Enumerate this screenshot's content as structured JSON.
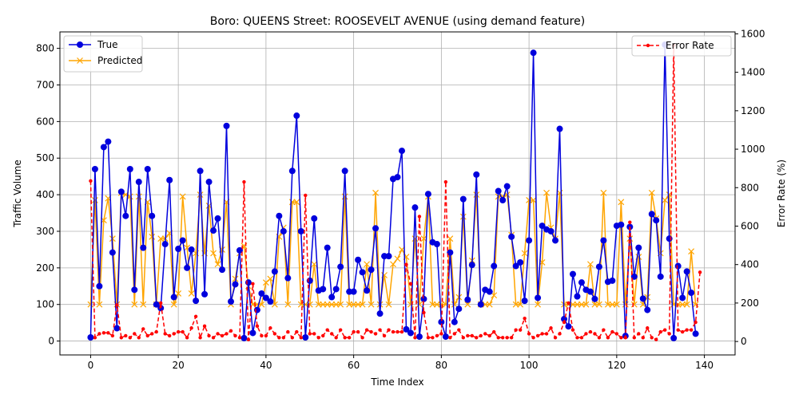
{
  "chart_data": {
    "type": "line",
    "title": "Boro: QUEENS Street: ROOSEVELT AVENUE (using demand feature)",
    "xlabel": "Time Index",
    "ylabel_left": "Traffic Volume",
    "ylabel_right": "Error Rate (%)",
    "xlim": [
      -7,
      147
    ],
    "ylim_left": [
      -38,
      845
    ],
    "ylim_right": [
      -70,
      1610
    ],
    "x_ticks": [
      0,
      20,
      40,
      60,
      80,
      100,
      120,
      140
    ],
    "y_left_ticks": [
      0,
      100,
      200,
      300,
      400,
      500,
      600,
      700,
      800
    ],
    "y_right_ticks": [
      0,
      200,
      400,
      600,
      800,
      1000,
      1200,
      1400,
      1600
    ],
    "grid": true,
    "legend_left": "top-left",
    "legend_right": "top-right",
    "colors": {
      "true": "#0000dd",
      "predicted": "#ffa500",
      "error": "#ff0000",
      "grid": "#b0b0b0"
    },
    "series": [
      {
        "name": "True",
        "axis": "left",
        "values": [
          10,
          470,
          150,
          530,
          545,
          242,
          35,
          408,
          342,
          470,
          140,
          435,
          255,
          470,
          342,
          100,
          90,
          265,
          440,
          120,
          252,
          275,
          200,
          250,
          110,
          465,
          128,
          435,
          302,
          335,
          195,
          588,
          108,
          155,
          248,
          8,
          160,
          22,
          85,
          130,
          118,
          108,
          190,
          342,
          300,
          172,
          465,
          616,
          300,
          10,
          165,
          335,
          138,
          142,
          255,
          120,
          142,
          203,
          465,
          135,
          135,
          222,
          188,
          138,
          195,
          308,
          75,
          232,
          232,
          443,
          448,
          520,
          32,
          22,
          365,
          12,
          115,
          402,
          270,
          265,
          52,
          12,
          242,
          52,
          88,
          388,
          113,
          208,
          455,
          100,
          140,
          135,
          205,
          410,
          385,
          423,
          285,
          205,
          215,
          110,
          275,
          788,
          118,
          315,
          305,
          300,
          275,
          580,
          60,
          40,
          183,
          122,
          160,
          140,
          135,
          115,
          203,
          275,
          162,
          165,
          315,
          318,
          14,
          312,
          176,
          255,
          116,
          85,
          347,
          330,
          176,
          810,
          280,
          8,
          205,
          118,
          190,
          132,
          20
        ]
      },
      {
        "name": "Predicted",
        "axis": "left",
        "values": [
          100,
          385,
          100,
          330,
          390,
          280,
          100,
          405,
          400,
          395,
          100,
          395,
          100,
          380,
          285,
          100,
          280,
          280,
          295,
          100,
          130,
          395,
          255,
          130,
          240,
          400,
          240,
          370,
          240,
          210,
          250,
          380,
          100,
          170,
          240,
          260,
          150,
          100,
          100,
          100,
          160,
          170,
          100,
          285,
          310,
          100,
          380,
          380,
          100,
          100,
          100,
          210,
          100,
          100,
          100,
          100,
          100,
          100,
          395,
          100,
          100,
          100,
          100,
          210,
          100,
          405,
          100,
          180,
          100,
          210,
          225,
          250,
          230,
          100,
          280,
          100,
          280,
          395,
          100,
          100,
          100,
          100,
          280,
          100,
          120,
          340,
          100,
          220,
          400,
          100,
          100,
          100,
          125,
          395,
          395,
          400,
          290,
          100,
          100,
          240,
          385,
          385,
          100,
          215,
          405,
          310,
          280,
          405,
          100,
          100,
          100,
          100,
          100,
          100,
          210,
          100,
          100,
          405,
          100,
          100,
          100,
          380,
          100,
          280,
          100,
          230,
          100,
          120,
          405,
          335,
          240,
          385,
          400,
          100,
          100,
          100,
          100,
          245,
          100
        ]
      },
      {
        "name": "Error Rate",
        "axis": "right",
        "values": [
          835,
          20,
          40,
          45,
          45,
          30,
          190,
          20,
          30,
          20,
          40,
          20,
          65,
          30,
          40,
          50,
          200,
          40,
          30,
          40,
          50,
          50,
          20,
          70,
          130,
          20,
          80,
          30,
          20,
          40,
          30,
          40,
          55,
          30,
          20,
          830,
          10,
          300,
          80,
          30,
          30,
          70,
          40,
          20,
          20,
          50,
          20,
          50,
          20,
          760,
          40,
          40,
          20,
          30,
          60,
          40,
          20,
          60,
          20,
          20,
          50,
          50,
          20,
          60,
          50,
          40,
          60,
          30,
          60,
          50,
          50,
          50,
          400,
          300,
          20,
          650,
          150,
          20,
          20,
          30,
          40,
          830,
          20,
          40,
          60,
          20,
          30,
          30,
          20,
          30,
          40,
          30,
          50,
          20,
          20,
          20,
          20,
          60,
          60,
          120,
          40,
          20,
          30,
          40,
          40,
          70,
          20,
          40,
          100,
          200,
          60,
          20,
          20,
          40,
          50,
          40,
          20,
          60,
          20,
          50,
          40,
          20,
          20,
          620,
          20,
          40,
          20,
          70,
          20,
          10,
          50,
          60,
          40,
          1540,
          60,
          50,
          60,
          60,
          100,
          360
        ]
      }
    ]
  }
}
